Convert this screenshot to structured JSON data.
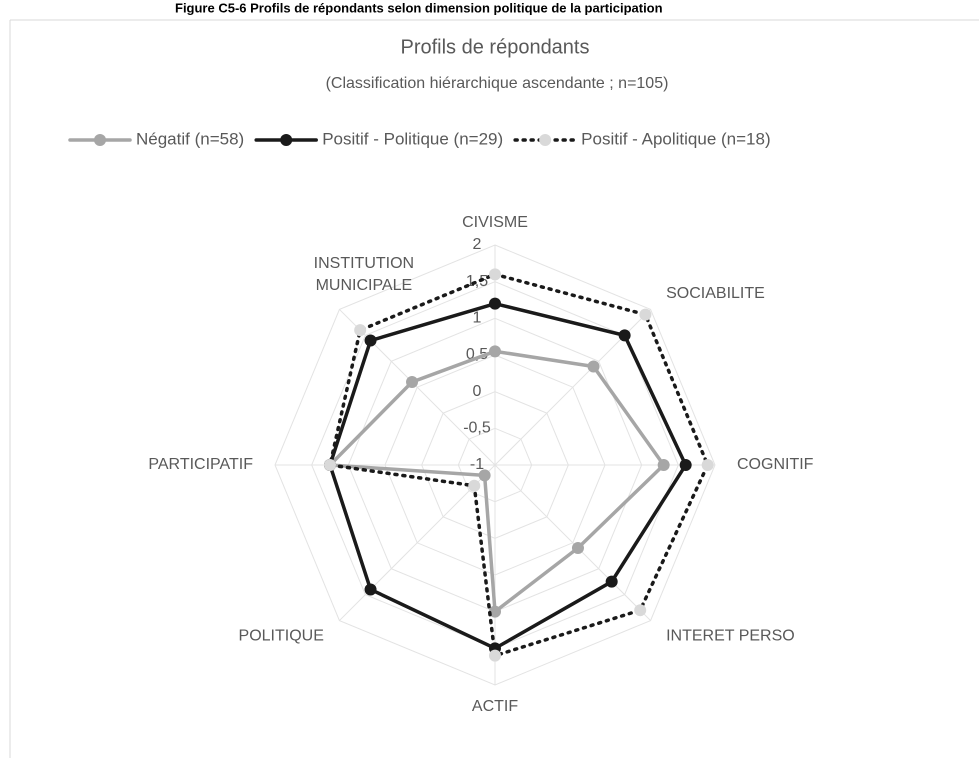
{
  "chart_data": {
    "type": "radar",
    "figure_caption": "Figure C5-6 Profils de répondants selon dimension politique de la participation",
    "title": "Profils de répondants",
    "subtitle": "(Classification hiérarchique ascendante ; n=105)",
    "categories": [
      "CIVISME",
      "SOCIABILITE",
      "COGNITIF",
      "INTERET PERSO",
      "ACTIF",
      "POLITIQUE",
      "PARTICIPATIF",
      "INSTITUTION MUNICIPALE"
    ],
    "series": [
      {
        "name": "Négatif (n=58)",
        "color": "#a6a6a6",
        "marker_color": "#a6a6a6",
        "dash": "solid",
        "values": [
          0.55,
          0.9,
          1.3,
          0.6,
          1.0,
          -0.8,
          1.25,
          0.6
        ]
      },
      {
        "name": "Positif - Politique (n=29)",
        "color": "#1a1a1a",
        "marker_color": "#1a1a1a",
        "dash": "solid",
        "values": [
          1.2,
          1.5,
          1.6,
          1.25,
          1.5,
          1.4,
          1.25,
          1.4
        ]
      },
      {
        "name": "Positif - Apolitique (n=18)",
        "color": "#1a1a1a",
        "marker_color": "#d9d9d9",
        "dash": "dotted",
        "values": [
          1.6,
          1.9,
          1.9,
          1.8,
          1.6,
          -0.6,
          1.25,
          1.6
        ]
      }
    ],
    "rlim": [
      -1,
      2
    ],
    "rticks": [
      -1,
      {
        "value": -0.5,
        "label": "-0,5"
      },
      0,
      {
        "value": 0.5,
        "label": "0,5"
      },
      1,
      {
        "value": 1.5,
        "label": "1,5"
      },
      2
    ],
    "grid": true,
    "legend": "top"
  }
}
